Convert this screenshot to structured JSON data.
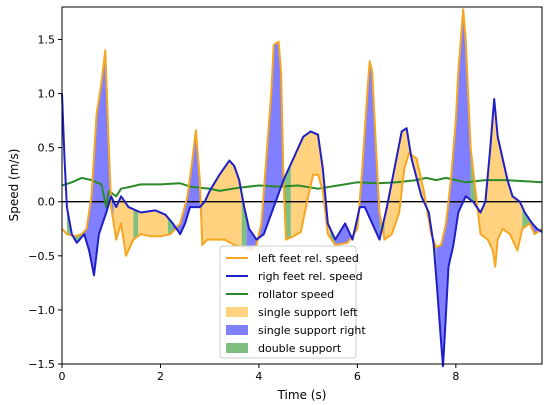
{
  "chart_data": {
    "type": "line",
    "title": "",
    "xlabel": "Time (s)",
    "ylabel": "Speed (m/s)",
    "xlim": [
      0,
      9.75
    ],
    "ylim": [
      -1.5,
      1.8
    ],
    "xticks": [
      0,
      2,
      4,
      6,
      8
    ],
    "xtick_labels": [
      "0",
      "2",
      "4",
      "6",
      "8"
    ],
    "yticks": [
      -1.5,
      -1.0,
      -0.5,
      0.0,
      0.5,
      1.0,
      1.5
    ],
    "ytick_labels": [
      "−1.5",
      "−1.0",
      "−0.5",
      "0.0",
      "0.5",
      "1.0",
      "1.5"
    ],
    "grid": false,
    "legend_position": "lower center",
    "zero_line": true,
    "series": [
      {
        "name": "left feet rel. speed",
        "color": "#f5a623",
        "points": [
          [
            0.0,
            -0.25
          ],
          [
            0.1,
            -0.3
          ],
          [
            0.25,
            -0.32
          ],
          [
            0.4,
            -0.3
          ],
          [
            0.5,
            -0.25
          ],
          [
            0.6,
            0.05
          ],
          [
            0.7,
            0.8
          ],
          [
            0.8,
            1.1
          ],
          [
            0.88,
            1.4
          ],
          [
            0.95,
            0.5
          ],
          [
            1.0,
            -0.05
          ],
          [
            1.1,
            -0.35
          ],
          [
            1.2,
            -0.2
          ],
          [
            1.3,
            -0.5
          ],
          [
            1.45,
            -0.35
          ],
          [
            1.6,
            -0.3
          ],
          [
            1.8,
            -0.32
          ],
          [
            2.0,
            -0.32
          ],
          [
            2.2,
            -0.3
          ],
          [
            2.4,
            -0.2
          ],
          [
            2.55,
            0.05
          ],
          [
            2.65,
            0.4
          ],
          [
            2.72,
            0.66
          ],
          [
            2.8,
            0.2
          ],
          [
            2.85,
            -0.4
          ],
          [
            2.95,
            -0.35
          ],
          [
            3.1,
            -0.35
          ],
          [
            3.3,
            -0.35
          ],
          [
            3.5,
            -0.4
          ],
          [
            3.7,
            -0.42
          ],
          [
            3.85,
            -0.45
          ],
          [
            3.95,
            -0.4
          ],
          [
            4.05,
            -0.2
          ],
          [
            4.15,
            0.4
          ],
          [
            4.25,
            1.0
          ],
          [
            4.3,
            1.45
          ],
          [
            4.4,
            1.48
          ],
          [
            4.45,
            1.2
          ],
          [
            4.5,
            0.2
          ],
          [
            4.55,
            -0.35
          ],
          [
            4.7,
            -0.32
          ],
          [
            4.85,
            -0.28
          ],
          [
            5.0,
            0.05
          ],
          [
            5.1,
            0.25
          ],
          [
            5.2,
            0.25
          ],
          [
            5.3,
            0.1
          ],
          [
            5.4,
            -0.3
          ],
          [
            5.55,
            -0.4
          ],
          [
            5.8,
            -0.38
          ],
          [
            6.0,
            -0.25
          ],
          [
            6.1,
            0.3
          ],
          [
            6.2,
            1.0
          ],
          [
            6.25,
            1.3
          ],
          [
            6.3,
            1.2
          ],
          [
            6.4,
            0.3
          ],
          [
            6.45,
            -0.1
          ],
          [
            6.55,
            -0.35
          ],
          [
            6.7,
            -0.3
          ],
          [
            6.85,
            -0.1
          ],
          [
            6.95,
            0.3
          ],
          [
            7.05,
            0.45
          ],
          [
            7.2,
            0.4
          ],
          [
            7.35,
            0.1
          ],
          [
            7.5,
            -0.3
          ],
          [
            7.6,
            -0.42
          ],
          [
            7.7,
            -0.4
          ],
          [
            7.8,
            -0.2
          ],
          [
            7.9,
            0.2
          ],
          [
            8.0,
            0.75
          ],
          [
            8.05,
            1.2
          ],
          [
            8.15,
            1.78
          ],
          [
            8.2,
            1.5
          ],
          [
            8.3,
            0.5
          ],
          [
            8.4,
            0.1
          ],
          [
            8.5,
            -0.3
          ],
          [
            8.65,
            -0.35
          ],
          [
            8.75,
            -0.45
          ],
          [
            8.8,
            -0.6
          ],
          [
            8.85,
            -0.35
          ],
          [
            8.95,
            -0.25
          ],
          [
            9.1,
            -0.3
          ],
          [
            9.25,
            -0.45
          ],
          [
            9.35,
            -0.25
          ],
          [
            9.5,
            -0.2
          ],
          [
            9.6,
            -0.3
          ],
          [
            9.75,
            -0.25
          ]
        ]
      },
      {
        "name": "righ feet rel. speed",
        "color": "#1f1fc8",
        "points": [
          [
            0.0,
            1.0
          ],
          [
            0.05,
            0.4
          ],
          [
            0.1,
            -0.05
          ],
          [
            0.2,
            -0.3
          ],
          [
            0.3,
            -0.38
          ],
          [
            0.45,
            -0.3
          ],
          [
            0.55,
            -0.45
          ],
          [
            0.65,
            -0.68
          ],
          [
            0.75,
            -0.3
          ],
          [
            0.9,
            -0.1
          ],
          [
            1.0,
            0.05
          ],
          [
            1.1,
            -0.05
          ],
          [
            1.2,
            0.05
          ],
          [
            1.35,
            -0.05
          ],
          [
            1.6,
            -0.1
          ],
          [
            1.9,
            -0.08
          ],
          [
            2.1,
            -0.12
          ],
          [
            2.25,
            -0.2
          ],
          [
            2.4,
            -0.3
          ],
          [
            2.5,
            -0.2
          ],
          [
            2.6,
            -0.05
          ],
          [
            2.8,
            -0.05
          ],
          [
            2.9,
            0.0
          ],
          [
            3.0,
            0.1
          ],
          [
            3.2,
            0.25
          ],
          [
            3.4,
            0.38
          ],
          [
            3.5,
            0.33
          ],
          [
            3.6,
            0.2
          ],
          [
            3.7,
            -0.05
          ],
          [
            3.8,
            -0.25
          ],
          [
            3.95,
            -0.35
          ],
          [
            4.1,
            -0.3
          ],
          [
            4.3,
            -0.05
          ],
          [
            4.5,
            0.2
          ],
          [
            4.7,
            0.4
          ],
          [
            4.9,
            0.6
          ],
          [
            5.05,
            0.65
          ],
          [
            5.2,
            0.62
          ],
          [
            5.3,
            0.3
          ],
          [
            5.4,
            -0.2
          ],
          [
            5.55,
            -0.35
          ],
          [
            5.75,
            -0.2
          ],
          [
            5.9,
            -0.35
          ],
          [
            6.05,
            -0.05
          ],
          [
            6.15,
            -0.05
          ],
          [
            6.3,
            -0.2
          ],
          [
            6.45,
            -0.35
          ],
          [
            6.6,
            -0.05
          ],
          [
            6.75,
            0.3
          ],
          [
            6.9,
            0.65
          ],
          [
            7.0,
            0.68
          ],
          [
            7.1,
            0.4
          ],
          [
            7.3,
            0.05
          ],
          [
            7.45,
            -0.1
          ],
          [
            7.55,
            -0.4
          ],
          [
            7.62,
            -0.8
          ],
          [
            7.7,
            -1.3
          ],
          [
            7.74,
            -1.52
          ],
          [
            7.78,
            -1.2
          ],
          [
            7.85,
            -0.6
          ],
          [
            7.95,
            -0.4
          ],
          [
            8.05,
            -0.1
          ],
          [
            8.2,
            0.05
          ],
          [
            8.35,
            0.0
          ],
          [
            8.5,
            -0.1
          ],
          [
            8.6,
            0.0
          ],
          [
            8.7,
            0.5
          ],
          [
            8.78,
            0.95
          ],
          [
            8.85,
            0.6
          ],
          [
            8.95,
            0.4
          ],
          [
            9.05,
            0.2
          ],
          [
            9.15,
            0.05
          ],
          [
            9.3,
            0.0
          ],
          [
            9.4,
            -0.1
          ],
          [
            9.55,
            -0.2
          ],
          [
            9.65,
            -0.25
          ],
          [
            9.75,
            -0.28
          ]
        ]
      },
      {
        "name": "rollator speed",
        "color": "#2a8a2a",
        "points": [
          [
            0.0,
            0.15
          ],
          [
            0.2,
            0.18
          ],
          [
            0.4,
            0.22
          ],
          [
            0.6,
            0.2
          ],
          [
            0.8,
            0.16
          ],
          [
            0.9,
            -0.05
          ],
          [
            0.95,
            0.1
          ],
          [
            1.1,
            0.05
          ],
          [
            1.2,
            0.12
          ],
          [
            1.4,
            0.14
          ],
          [
            1.6,
            0.16
          ],
          [
            2.0,
            0.16
          ],
          [
            2.4,
            0.17
          ],
          [
            2.6,
            0.14
          ],
          [
            3.0,
            0.12
          ],
          [
            3.2,
            0.1
          ],
          [
            3.6,
            0.13
          ],
          [
            4.0,
            0.15
          ],
          [
            4.4,
            0.14
          ],
          [
            4.8,
            0.15
          ],
          [
            5.2,
            0.12
          ],
          [
            5.6,
            0.15
          ],
          [
            6.0,
            0.18
          ],
          [
            6.4,
            0.17
          ],
          [
            6.8,
            0.18
          ],
          [
            7.2,
            0.2
          ],
          [
            7.4,
            0.22
          ],
          [
            7.6,
            0.2
          ],
          [
            7.8,
            0.22
          ],
          [
            8.0,
            0.2
          ],
          [
            8.2,
            0.18
          ],
          [
            8.6,
            0.2
          ],
          [
            9.0,
            0.2
          ],
          [
            9.4,
            0.19
          ],
          [
            9.75,
            0.18
          ]
        ]
      }
    ],
    "phases": {
      "names": [
        "single support left",
        "single support right",
        "double support"
      ],
      "colors": [
        "#ffd27f",
        "#7f7fff",
        "#7fbf7f"
      ],
      "intervals": [
        [
          0.1,
          0.4,
          2
        ],
        [
          0.45,
          1.05,
          1
        ],
        [
          1.05,
          1.45,
          0
        ],
        [
          1.45,
          1.55,
          2
        ],
        [
          1.55,
          2.15,
          0
        ],
        [
          2.15,
          2.25,
          2
        ],
        [
          2.25,
          2.85,
          1
        ],
        [
          2.85,
          3.65,
          0
        ],
        [
          3.65,
          3.75,
          2
        ],
        [
          3.75,
          4.5,
          1
        ],
        [
          4.5,
          4.65,
          2
        ],
        [
          4.65,
          5.45,
          0
        ],
        [
          5.45,
          5.55,
          2
        ],
        [
          5.55,
          6.45,
          1
        ],
        [
          6.45,
          6.55,
          2
        ],
        [
          6.55,
          7.5,
          0
        ],
        [
          7.5,
          7.6,
          2
        ],
        [
          7.6,
          8.3,
          1
        ],
        [
          8.3,
          8.4,
          2
        ],
        [
          8.4,
          9.35,
          0
        ],
        [
          9.35,
          9.5,
          2
        ],
        [
          9.5,
          9.75,
          1
        ]
      ]
    }
  }
}
